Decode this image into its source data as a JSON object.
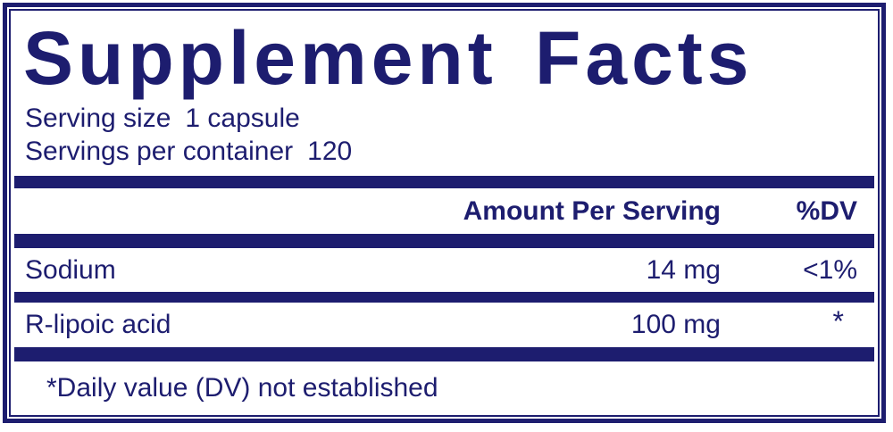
{
  "colors": {
    "navy": "#1d1d6f",
    "background": "#ffffff"
  },
  "title": "Supplement Facts",
  "serving_info": {
    "serving_size_label": "Serving size",
    "serving_size_value": "1 capsule",
    "servings_per_container_label": "Servings per container",
    "servings_per_container_value": "120"
  },
  "table": {
    "headers": {
      "amount": "Amount Per Serving",
      "dv": "%DV"
    },
    "rows": [
      {
        "name": "Sodium",
        "amount": "14 mg",
        "dv": "<1%"
      },
      {
        "name": "R-lipoic acid",
        "amount": "100 mg",
        "dv": "*"
      }
    ],
    "footnote": "*Daily value (DV) not established"
  }
}
